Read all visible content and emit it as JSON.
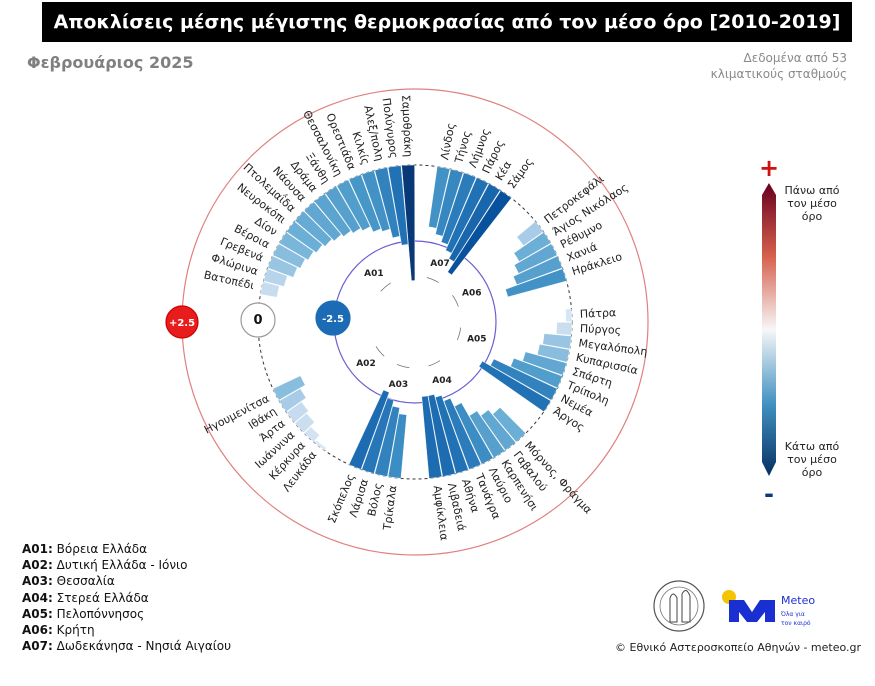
{
  "header": {
    "title": "Αποκλίσεις μέσης μέγιστης θερμοκρασίας από τον μέσο όρο [2010-2019]",
    "subtitle": "Φεβρουάριος 2025",
    "source_line1": "Δεδομένα από 53",
    "source_line2": "κλιματικούς σταθμούς"
  },
  "legend": [
    {
      "code": "A01:",
      "name": "Βόρεια Ελλάδα"
    },
    {
      "code": "A02:",
      "name": "Δυτική Ελλάδα - Ιόνιο"
    },
    {
      "code": "A03:",
      "name": "Θεσσαλία"
    },
    {
      "code": "A04:",
      "name": "Στερεά Ελλάδα"
    },
    {
      "code": "A05:",
      "name": "Πελοπόννησος"
    },
    {
      "code": "A06:",
      "name": "Κρήτη"
    },
    {
      "code": "A07:",
      "name": "Δωδεκάνησα - Νησιά Αιγαίου"
    }
  ],
  "colorbar": {
    "plus": "+",
    "minus": "-",
    "above": [
      "Πάνω από",
      "τον μέσο",
      "όρο"
    ],
    "below": [
      "Κάτω από",
      "τον μέσο",
      "όρο"
    ],
    "colors": [
      "#67001f",
      "#d6604d",
      "#f7f7f7",
      "#4393c3",
      "#053061"
    ]
  },
  "credit": "© Εθνικό Αστεροσκοπείο Αθηνών - meteo.gr",
  "logo": {
    "name": "Meteo",
    "tagline1": "Όλα για",
    "tagline2": "τον καιρό",
    "brand_color": "#1a2fd1",
    "sun_color": "#f5c400"
  },
  "chart_data": {
    "type": "radial-bar",
    "unit": "°C",
    "reference_rings": [
      {
        "value": 2.5,
        "label": "+2.5",
        "color": "#e81c1c"
      },
      {
        "value": 0,
        "label": "0",
        "color": "#ffffff"
      },
      {
        "value": -2.5,
        "label": "-2.5",
        "color": "#1b6cb5"
      }
    ],
    "groups": [
      {
        "code": "A07",
        "stations": [
          "Λίνδος",
          "Τήνος",
          "Λήμνος",
          "Πάρος",
          "Κέα",
          "Σάμος"
        ],
        "values": [
          -2.0,
          -2.2,
          -2.4,
          -2.6,
          -2.8,
          -3.2
        ]
      },
      {
        "code": "A06",
        "stations": [
          "Πετροκεφάλι",
          "Άγιος Νικόλαος",
          "Ρέθυμνο",
          "Χανιά",
          "Ηράκλειο"
        ],
        "values": [
          -0.8,
          -1.2,
          -1.4,
          -1.6,
          -2.0
        ]
      },
      {
        "code": "A05",
        "stations": [
          "Πάτρα",
          "Πύργος",
          "Μεγαλόπολη",
          "Κυπαρισσία",
          "Σπάρτη",
          "Τρίπολη",
          "Νεμέα",
          "Άργος"
        ],
        "values": [
          -0.2,
          -0.5,
          -0.9,
          -1.0,
          -1.4,
          -1.7,
          -2.3,
          -2.6
        ]
      },
      {
        "code": "A04",
        "stations": [
          "Μόρνος, Φράγμα",
          "Γαβαλού",
          "Καρπενήσι",
          "Λαύριο",
          "Τανάγρα",
          "Αθήνα",
          "Λιβαδειά",
          "Αμφίκλεια"
        ],
        "values": [
          -1.2,
          -1.4,
          -1.6,
          -2.1,
          -2.4,
          -2.6,
          -2.7,
          -2.7
        ]
      },
      {
        "code": "A03",
        "stations": [
          "Τρίκαλα",
          "Βόλος",
          "Λάρισα",
          "Σκόπελος"
        ],
        "values": [
          -2.1,
          -2.3,
          -2.5,
          -2.7
        ]
      },
      {
        "code": "A02",
        "stations": [
          "Λευκάδα",
          "Κέρκυρα",
          "Ιωάννινα",
          "Άρτα",
          "Ιθάκη",
          "Ηγουμενίτσα"
        ],
        "values": [
          -0.1,
          -0.3,
          -0.5,
          -0.6,
          -0.8,
          -1.0
        ]
      },
      {
        "code": "A01",
        "stations": [
          "Βατοπέδι",
          "Φλώρινα",
          "Γρεβενά",
          "Βέροια",
          "Δίον",
          "Νευροκόπι",
          "Πτολεμαΐδα",
          "Νάουσα",
          "Δράμα",
          "Ξάνθη",
          "Θεσσαλονίκη",
          "Ορεστιάδα",
          "Κιλκίς",
          "Αλεξ/πολη",
          "Πολύγυρος",
          "Σαμοθράκη"
        ],
        "values": [
          -0.55,
          -0.7,
          -0.9,
          -1.0,
          -1.1,
          -1.2,
          -1.3,
          -1.4,
          -1.5,
          -1.6,
          -1.7,
          -1.9,
          -2.0,
          -2.3,
          -2.6,
          -3.8
        ]
      }
    ]
  }
}
